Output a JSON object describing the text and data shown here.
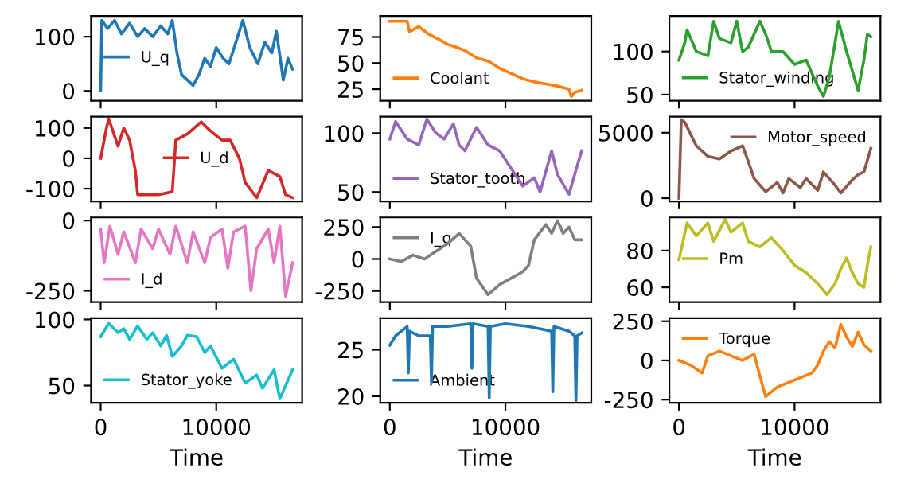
{
  "chart_data": [
    {
      "type": "line",
      "xlim": [
        -830,
        17430
      ],
      "ylim": [
        -18,
        138
      ],
      "yticks": [
        0,
        100
      ],
      "xticks": [
        0,
        10000
      ],
      "tick_labels": "y",
      "legend": "center left",
      "grid": false,
      "x": [
        0,
        100,
        600,
        1200,
        1800,
        2500,
        3200,
        3800,
        4500,
        5200,
        5800,
        6200,
        6600,
        7000,
        7500,
        8000,
        8500,
        9000,
        9500,
        10000,
        10600,
        11100,
        11700,
        12300,
        12900,
        13600,
        14200,
        14800,
        15200,
        15800,
        16200,
        16600
      ],
      "series": [
        {
          "name": "U_q",
          "color": "#1f77b4",
          "values": [
            0,
            130,
            115,
            130,
            105,
            125,
            100,
            115,
            100,
            120,
            105,
            130,
            70,
            30,
            20,
            10,
            30,
            60,
            45,
            80,
            60,
            50,
            90,
            130,
            80,
            50,
            90,
            70,
            110,
            20,
            60,
            40
          ]
        }
      ]
    },
    {
      "type": "line",
      "xlim": [
        -830,
        17430
      ],
      "ylim": [
        14,
        95
      ],
      "yticks": [
        25,
        50,
        75
      ],
      "xticks": [
        0,
        10000
      ],
      "tick_labels": "y",
      "legend": "lower left",
      "grid": false,
      "x": [
        0,
        1500,
        1700,
        2500,
        3300,
        4200,
        5000,
        5800,
        6500,
        7500,
        8500,
        9500,
        10500,
        11500,
        12500,
        13500,
        14500,
        15500,
        15700,
        16000,
        16600
      ],
      "series": [
        {
          "name": "Coolant",
          "color": "#ff7f0e",
          "values": [
            90,
            90,
            80,
            85,
            78,
            73,
            68,
            65,
            62,
            55,
            52,
            45,
            40,
            35,
            32,
            30,
            28,
            25,
            18,
            22,
            24
          ]
        }
      ]
    },
    {
      "type": "line",
      "xlim": [
        -830,
        17430
      ],
      "ylim": [
        43,
        141
      ],
      "yticks": [
        50,
        100
      ],
      "xticks": [
        0,
        10000
      ],
      "tick_labels": "y",
      "legend": "lower left",
      "grid": false,
      "x": [
        0,
        500,
        700,
        1500,
        2500,
        3000,
        3500,
        4500,
        5000,
        5500,
        6000,
        7000,
        7500,
        8000,
        9000,
        10000,
        11000,
        12000,
        12500,
        13000,
        13500,
        13800,
        14500,
        15500,
        16000,
        16300,
        16600
      ],
      "series": [
        {
          "name": "Stator_winding",
          "color": "#2ca02c",
          "values": [
            90,
            110,
            125,
            100,
            95,
            135,
            115,
            110,
            135,
            100,
            105,
            135,
            120,
            100,
            100,
            85,
            90,
            60,
            48,
            70,
            110,
            135,
            100,
            55,
            90,
            120,
            117
          ]
        }
      ]
    },
    {
      "type": "line",
      "xlim": [
        -830,
        17430
      ],
      "ylim": [
        -142,
        137
      ],
      "yticks": [
        -100,
        0,
        100
      ],
      "xticks": [
        0,
        10000
      ],
      "tick_labels": "y",
      "legend": "center",
      "grid": false,
      "x": [
        0,
        500,
        700,
        1500,
        2000,
        2500,
        3000,
        3200,
        5000,
        6200,
        6500,
        7500,
        8700,
        9500,
        10500,
        11200,
        12000,
        12500,
        13500,
        14500,
        15500,
        16000,
        16600
      ],
      "series": [
        {
          "name": "U_d",
          "color": "#d62728",
          "values": [
            0,
            100,
            130,
            40,
            100,
            60,
            -40,
            -120,
            -120,
            -110,
            60,
            80,
            120,
            90,
            60,
            60,
            0,
            -80,
            -130,
            -40,
            -60,
            -120,
            -130
          ]
        }
      ]
    },
    {
      "type": "line",
      "xlim": [
        -830,
        17430
      ],
      "ylim": [
        42,
        114
      ],
      "yticks": [
        50,
        100
      ],
      "xticks": [
        0,
        10000
      ],
      "tick_labels": "y",
      "legend": "lower left",
      "grid": false,
      "x": [
        0,
        500,
        1500,
        2500,
        3200,
        4000,
        4700,
        5500,
        6000,
        6500,
        7500,
        8500,
        9500,
        10500,
        11500,
        12500,
        13000,
        14000,
        14500,
        15500,
        16000,
        16600
      ],
      "series": [
        {
          "name": "Stator_tooth",
          "color": "#9467bd",
          "values": [
            95,
            110,
            95,
            90,
            112,
            100,
            95,
            108,
            90,
            85,
            105,
            90,
            85,
            70,
            55,
            62,
            50,
            85,
            65,
            48,
            65,
            85
          ]
        }
      ]
    },
    {
      "type": "line",
      "xlim": [
        -830,
        17430
      ],
      "ylim": [
        -244,
        6220
      ],
      "yticks": [
        0,
        5000
      ],
      "xticks": [
        0,
        10000
      ],
      "tick_labels": "y",
      "legend": "upper right",
      "grid": false,
      "x": [
        0,
        200,
        500,
        1500,
        2500,
        3500,
        4500,
        5500,
        6000,
        6500,
        7000,
        7500,
        8500,
        9000,
        9500,
        10500,
        11000,
        12000,
        12500,
        13500,
        14000,
        15000,
        15500,
        16000,
        16600
      ],
      "series": [
        {
          "name": "Motor_speed",
          "color": "#8c564b",
          "values": [
            0,
            6000,
            5800,
            4000,
            3200,
            3000,
            3600,
            4000,
            2800,
            1500,
            1000,
            500,
            1200,
            400,
            1500,
            800,
            1500,
            600,
            2000,
            1000,
            400,
            1400,
            1800,
            2000,
            3800
          ]
        }
      ]
    },
    {
      "type": "line",
      "xlim": [
        -830,
        17430
      ],
      "ylim": [
        -290,
        11
      ],
      "yticks": [
        -250,
        0
      ],
      "xticks": [
        0,
        10000
      ],
      "tick_labels": "y",
      "legend": "lower left",
      "grid": false,
      "x": [
        0,
        300,
        800,
        1500,
        2000,
        3000,
        3500,
        4500,
        5000,
        6000,
        6500,
        7500,
        8000,
        9000,
        9500,
        10500,
        11000,
        11500,
        12500,
        13000,
        13500,
        14500,
        15000,
        15500,
        16000,
        16600
      ],
      "series": [
        {
          "name": "I_d",
          "color": "#e377c2",
          "values": [
            -30,
            -150,
            -20,
            -120,
            -40,
            -150,
            -30,
            -100,
            -30,
            -120,
            -20,
            -150,
            -40,
            -150,
            -60,
            -30,
            -170,
            -40,
            -20,
            -250,
            -100,
            -30,
            -150,
            -20,
            -270,
            -150
          ]
        }
      ]
    },
    {
      "type": "line",
      "xlim": [
        -830,
        17430
      ],
      "ylim": [
        -337,
        325
      ],
      "yticks": [
        -250,
        0,
        250
      ],
      "xticks": [
        0,
        10000
      ],
      "tick_labels": "y",
      "legend": "upper left",
      "grid": false,
      "x": [
        0,
        1000,
        2000,
        3000,
        4000,
        5000,
        6000,
        7000,
        7500,
        8500,
        9500,
        10500,
        11500,
        12000,
        12500,
        13500,
        14000,
        14500,
        15000,
        15500,
        16000,
        16600
      ],
      "series": [
        {
          "name": "I_q",
          "color": "#7f7f7f",
          "values": [
            0,
            -20,
            30,
            0,
            60,
            120,
            200,
            100,
            -150,
            -280,
            -200,
            -150,
            -100,
            -50,
            150,
            270,
            200,
            300,
            200,
            250,
            150,
            150
          ]
        }
      ]
    },
    {
      "type": "line",
      "xlim": [
        -830,
        17430
      ],
      "ylim": [
        52,
        98
      ],
      "yticks": [
        60,
        80
      ],
      "xticks": [
        0,
        10000
      ],
      "tick_labels": "y",
      "legend": "center left",
      "grid": false,
      "x": [
        0,
        700,
        1500,
        2500,
        3000,
        4000,
        4500,
        5500,
        6000,
        7000,
        8000,
        9000,
        10000,
        11000,
        12000,
        12800,
        13500,
        14000,
        14500,
        15000,
        15500,
        16000,
        16300,
        16600
      ],
      "series": [
        {
          "name": "Pm",
          "color": "#bcbd22",
          "values": [
            75,
            95,
            88,
            95,
            85,
            97,
            90,
            95,
            85,
            82,
            87,
            80,
            72,
            68,
            62,
            56,
            62,
            70,
            76,
            68,
            62,
            60,
            72,
            82
          ]
        }
      ]
    },
    {
      "type": "line",
      "xlim": [
        -830,
        17430
      ],
      "ylim": [
        37,
        101
      ],
      "yticks": [
        50,
        100
      ],
      "xticks": [
        0,
        10000
      ],
      "xlabel": "Time",
      "legend": "lower left",
      "grid": false,
      "x": [
        0,
        700,
        1500,
        2000,
        2500,
        3200,
        4000,
        4500,
        5200,
        5700,
        6200,
        7000,
        7500,
        8300,
        9000,
        9500,
        10500,
        11500,
        12500,
        13500,
        14000,
        15000,
        15500,
        16000,
        16600
      ],
      "series": [
        {
          "name": "Stator_yoke",
          "color": "#17becf",
          "values": [
            87,
            97,
            90,
            93,
            85,
            95,
            85,
            90,
            80,
            88,
            72,
            80,
            88,
            87,
            75,
            80,
            63,
            70,
            52,
            58,
            48,
            62,
            40,
            50,
            62
          ]
        }
      ]
    },
    {
      "type": "line",
      "xlim": [
        -830,
        17430
      ],
      "ylim": [
        19.3,
        28.4
      ],
      "yticks": [
        20,
        25
      ],
      "xticks": [
        0,
        10000
      ],
      "xlabel": "Time",
      "legend": "lower left",
      "grid": false,
      "x": [
        0,
        500,
        1500,
        1600,
        1700,
        2500,
        3500,
        3600,
        3700,
        5000,
        7000,
        7100,
        7200,
        8500,
        8600,
        8700,
        10000,
        12000,
        14000,
        14100,
        14200,
        15500,
        16000,
        16100,
        16200,
        16600
      ],
      "series": [
        {
          "name": "Ambient",
          "color": "#1f77b4",
          "values": [
            25.5,
            26.5,
            27.5,
            22.5,
            27,
            26.5,
            26.5,
            21.5,
            27.5,
            27.5,
            27.8,
            23,
            27.8,
            27.5,
            19.8,
            27.5,
            27.8,
            27.5,
            27,
            20.5,
            27.5,
            27,
            26.5,
            19.5,
            26.5,
            26.8
          ]
        }
      ]
    },
    {
      "type": "line",
      "xlim": [
        -830,
        17430
      ],
      "ylim": [
        -270,
        270
      ],
      "yticks": [
        -250,
        0,
        250
      ],
      "xticks": [
        0,
        10000
      ],
      "xlabel": "Time",
      "legend": "upper left",
      "grid": false,
      "x": [
        0,
        1000,
        2000,
        2500,
        3500,
        4500,
        5500,
        6500,
        7000,
        7500,
        8500,
        9500,
        10500,
        11500,
        12000,
        12500,
        13000,
        13500,
        14000,
        14500,
        15000,
        15500,
        16000,
        16600
      ],
      "series": [
        {
          "name": "Torque",
          "color": "#ff7f0e",
          "values": [
            0,
            -30,
            -80,
            30,
            60,
            30,
            0,
            40,
            -100,
            -230,
            -170,
            -140,
            -110,
            -80,
            -30,
            60,
            120,
            80,
            230,
            150,
            90,
            180,
            100,
            60
          ]
        }
      ]
    }
  ]
}
